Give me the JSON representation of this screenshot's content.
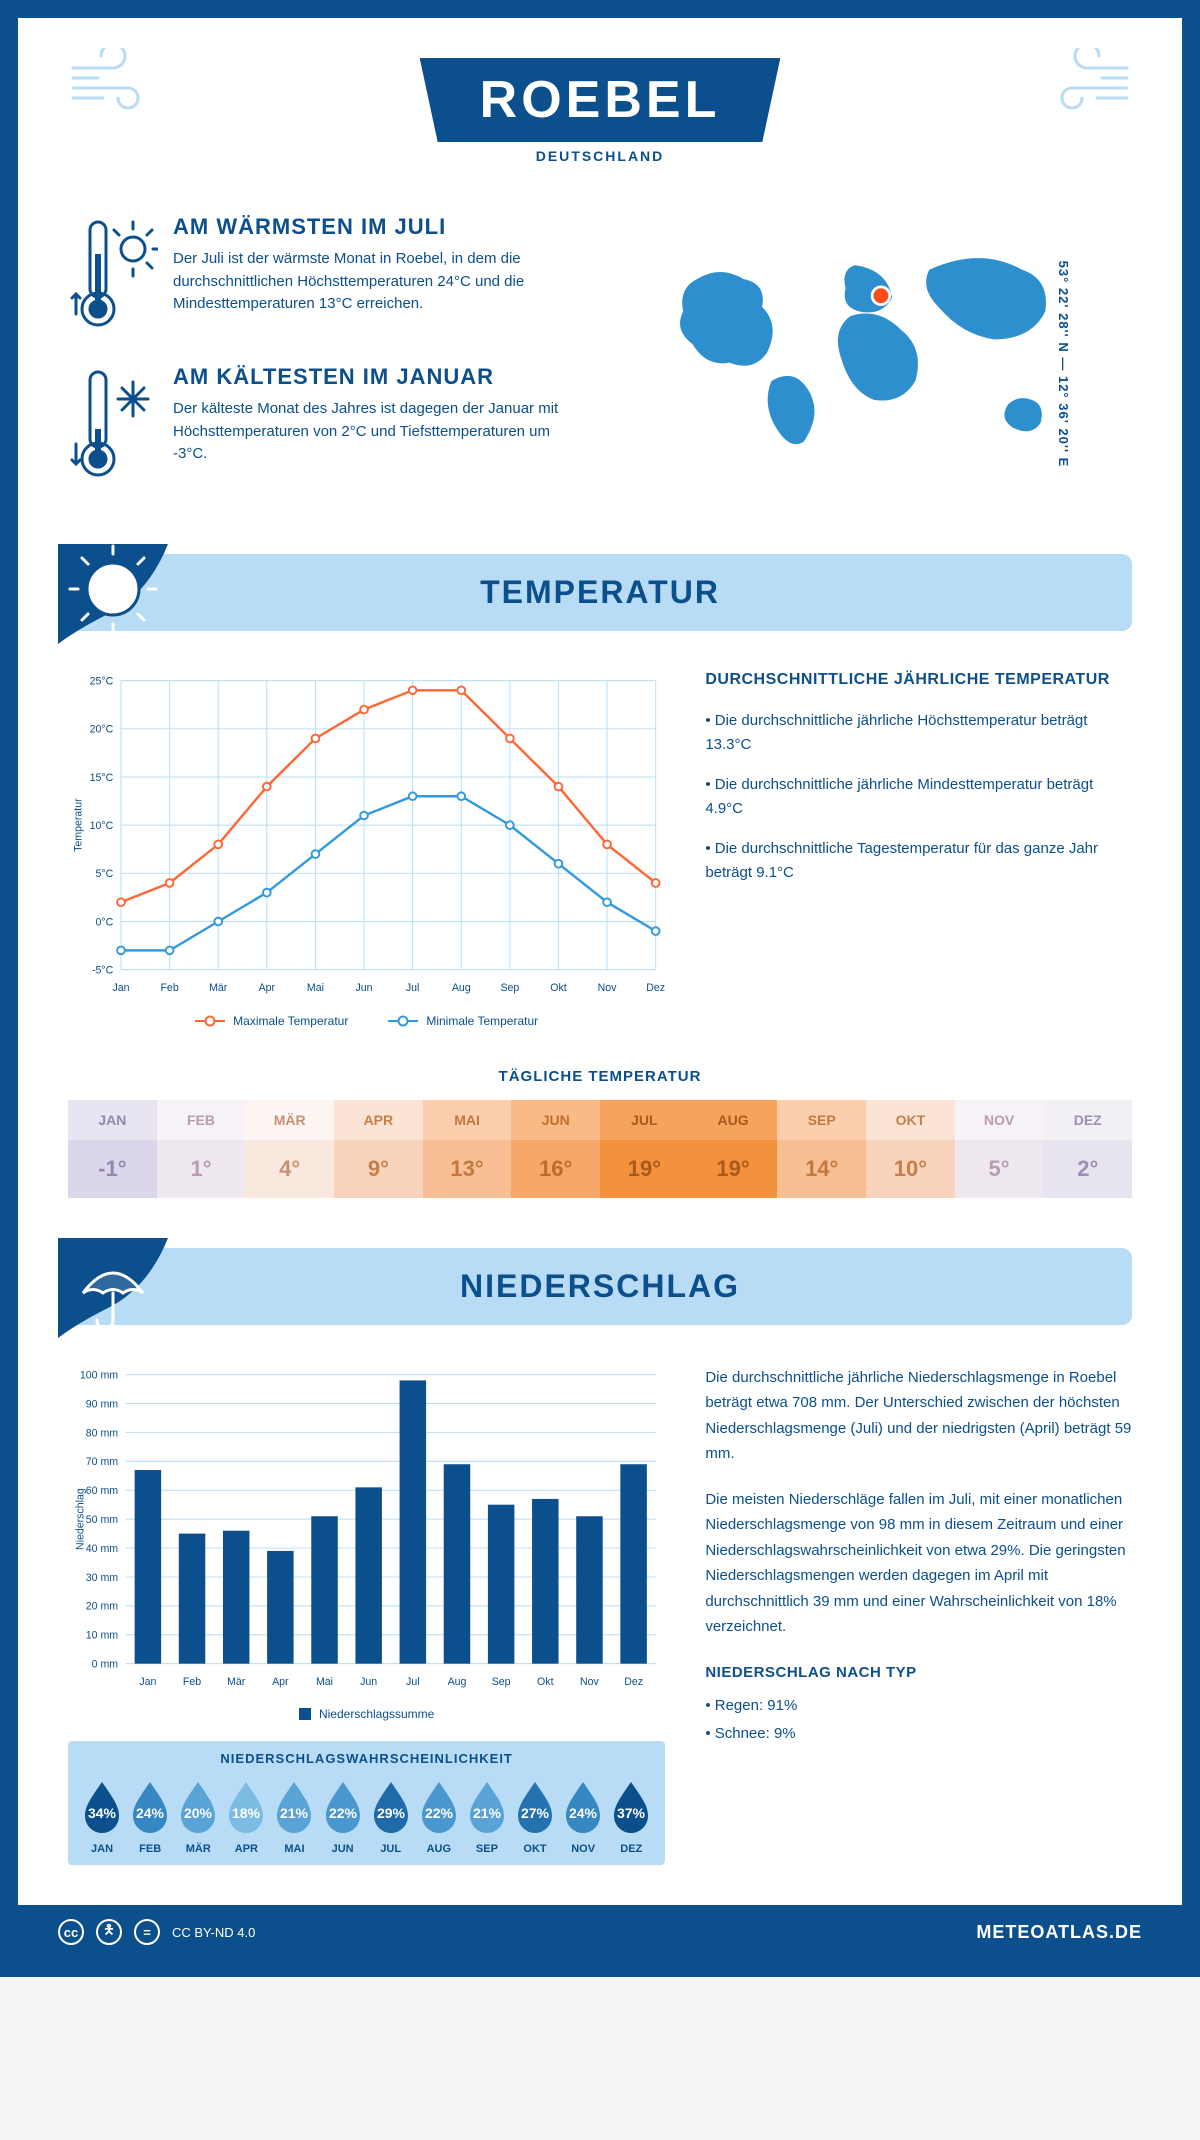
{
  "header": {
    "title": "ROEBEL",
    "subtitle": "DEUTSCHLAND",
    "coords": "53° 22' 28'' N — 12° 36' 20'' E"
  },
  "colors": {
    "primary": "#0b4f8c",
    "light": "#b8dcf5",
    "accent_orange": "#ff6633",
    "accent_blue": "#3399dd",
    "map_blue": "#2e8fce",
    "marker": "#ff4d1a"
  },
  "warm": {
    "title": "AM WÄRMSTEN IM JULI",
    "text": "Der Juli ist der wärmste Monat in Roebel, in dem die durchschnittlichen Höchsttemperaturen 24°C und die Mindesttemperaturen 13°C erreichen."
  },
  "cold": {
    "title": "AM KÄLTESTEN IM JANUAR",
    "text": "Der kälteste Monat des Jahres ist dagegen der Januar mit Höchsttemperaturen von 2°C und Tiefsttemperaturen um -3°C."
  },
  "temp_section": {
    "title": "TEMPERATUR"
  },
  "temp_chart": {
    "months": [
      "Jan",
      "Feb",
      "Mär",
      "Apr",
      "Mai",
      "Jun",
      "Jul",
      "Aug",
      "Sep",
      "Okt",
      "Nov",
      "Dez"
    ],
    "max": [
      2,
      4,
      8,
      14,
      19,
      22,
      24,
      24,
      19,
      14,
      8,
      4
    ],
    "min": [
      -3,
      -3,
      0,
      3,
      7,
      11,
      13,
      13,
      10,
      6,
      2,
      -1
    ],
    "ylim": [
      -5,
      25
    ],
    "ytick_step": 5,
    "ylabel": "Temperatur",
    "max_color": "#ff6633",
    "min_color": "#3399dd",
    "legend_max": "Maximale Temperatur",
    "legend_min": "Minimale Temperatur"
  },
  "temp_info": {
    "heading": "DURCHSCHNITTLICHE JÄHRLICHE TEMPERATUR",
    "b1": "• Die durchschnittliche jährliche Höchsttemperatur beträgt 13.3°C",
    "b2": "• Die durchschnittliche jährliche Mindesttemperatur beträgt 4.9°C",
    "b3": "• Die durchschnittliche Tagestemperatur für das ganze Jahr beträgt 9.1°C"
  },
  "daily": {
    "heading": "TÄGLICHE TEMPERATUR",
    "months": [
      "JAN",
      "FEB",
      "MÄR",
      "APR",
      "MAI",
      "JUN",
      "JUL",
      "AUG",
      "SEP",
      "OKT",
      "NOV",
      "DEZ"
    ],
    "values": [
      "-1°",
      "1°",
      "4°",
      "9°",
      "13°",
      "16°",
      "19°",
      "19°",
      "14°",
      "10°",
      "5°",
      "2°"
    ],
    "head_bg": [
      "#e8e4f2",
      "#f7f2f7",
      "#fdf5f2",
      "#fce4d4",
      "#fbcfae",
      "#faba86",
      "#f7a35c",
      "#f7a35c",
      "#fbcfae",
      "#fce4d4",
      "#f7f2f7",
      "#f2f0f5"
    ],
    "val_bg": [
      "#dcd6ea",
      "#f0e8f0",
      "#fae8df",
      "#f9d4bd",
      "#f8bf95",
      "#f6a868",
      "#f3913d",
      "#f3913d",
      "#f8bf95",
      "#f9d4bd",
      "#f0e8f0",
      "#e7e3ef"
    ],
    "txt": [
      "#9088ae",
      "#b89cb0",
      "#c79274",
      "#c77e48",
      "#c2793f",
      "#bd6e2e",
      "#a85a1c",
      "#a85a1c",
      "#c2793f",
      "#c77e48",
      "#b89cb0",
      "#9a90b3"
    ]
  },
  "precip_section": {
    "title": "NIEDERSCHLAG"
  },
  "precip_chart": {
    "months": [
      "Jan",
      "Feb",
      "Mär",
      "Apr",
      "Mai",
      "Jun",
      "Jul",
      "Aug",
      "Sep",
      "Okt",
      "Nov",
      "Dez"
    ],
    "values": [
      67,
      45,
      46,
      39,
      51,
      61,
      98,
      69,
      55,
      57,
      51,
      69
    ],
    "ylim": [
      0,
      100
    ],
    "ytick_step": 10,
    "ylabel": "Niederschlag",
    "bar_color": "#0b4f8c",
    "legend": "Niederschlagssumme"
  },
  "precip_text": {
    "p1": "Die durchschnittliche jährliche Niederschlagsmenge in Roebel beträgt etwa 708 mm. Der Unterschied zwischen der höchsten Niederschlagsmenge (Juli) und der niedrigsten (April) beträgt 59 mm.",
    "p2": "Die meisten Niederschläge fallen im Juli, mit einer monatlichen Niederschlagsmenge von 98 mm in diesem Zeitraum und einer Niederschlagswahrscheinlichkeit von etwa 29%. Die geringsten Niederschlagsmengen werden dagegen im April mit durchschnittlich 39 mm und einer Wahrscheinlichkeit von 18% verzeichnet.",
    "type_heading": "NIEDERSCHLAG NACH TYP",
    "type1": "• Regen: 91%",
    "type2": "• Schnee: 9%"
  },
  "prob": {
    "title": "NIEDERSCHLAGSWAHRSCHEINLICHKEIT",
    "months": [
      "JAN",
      "FEB",
      "MÄR",
      "APR",
      "MAI",
      "JUN",
      "JUL",
      "AUG",
      "SEP",
      "OKT",
      "NOV",
      "DEZ"
    ],
    "values": [
      "34%",
      "24%",
      "20%",
      "18%",
      "21%",
      "22%",
      "29%",
      "22%",
      "21%",
      "27%",
      "24%",
      "37%"
    ],
    "colors": [
      "#0b4f8c",
      "#3687c2",
      "#5aa3d6",
      "#7cbce3",
      "#5aa3d6",
      "#4a97cf",
      "#1f6aa8",
      "#4a97cf",
      "#5aa3d6",
      "#2572b0",
      "#3687c2",
      "#0b4f8c"
    ]
  },
  "footer": {
    "license": "CC BY-ND 4.0",
    "site": "METEOATLAS.DE"
  }
}
